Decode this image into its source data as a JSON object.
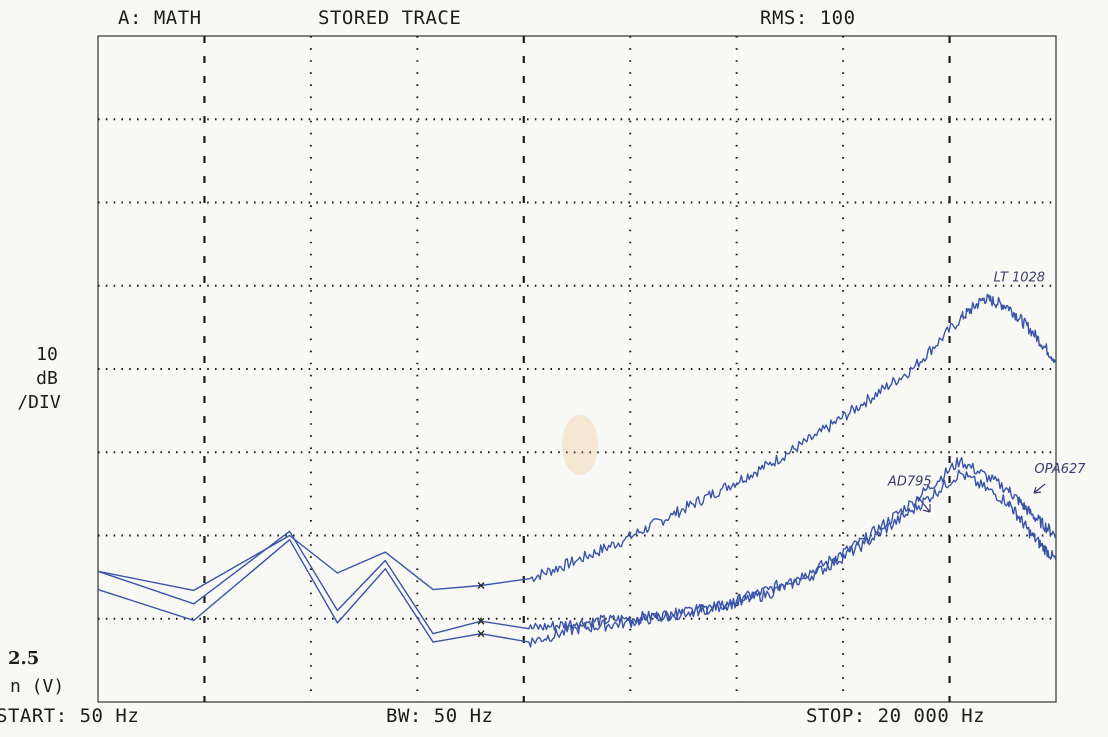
{
  "header": {
    "channel": "A: MATH",
    "trace": "STORED TRACE",
    "rms": "RMS: 100"
  },
  "scale": {
    "value": "10",
    "unit1": "dB",
    "unit2": "/DIV"
  },
  "reference": {
    "level": "2.5",
    "unit": "n (V)"
  },
  "footer": {
    "start": "START:  50 Hz",
    "bw": "BW:  50 Hz",
    "stop": "STOP:  20 000 Hz"
  },
  "colors": {
    "trace": "#3a55a8",
    "grid": "#1d1d1d",
    "frame": "#333333",
    "background": "#f8f8f5"
  },
  "chart_data": {
    "type": "line",
    "title": "",
    "xlabel": "",
    "ylabel": "",
    "x_scale": "linear",
    "xlim": [
      50,
      20000
    ],
    "ylim": [
      0,
      8
    ],
    "y_units": "divisions above reference (10 dB/DIV)",
    "grid": true,
    "series": [
      {
        "name": "LT 1028",
        "x": [
          50,
          2045,
          4040,
          5036,
          6032,
          7029,
          8026,
          9023,
          10020,
          11019,
          12017,
          13015,
          14013,
          15012,
          16010,
          17007,
          18004,
          18503,
          19002,
          19501,
          20000
        ],
        "y": [
          1.57,
          1.34,
          2.0,
          1.55,
          1.8,
          1.35,
          1.4,
          1.48,
          1.7,
          1.95,
          2.25,
          2.55,
          2.85,
          3.2,
          3.6,
          4.0,
          4.6,
          4.85,
          4.75,
          4.45,
          4.1
        ]
      },
      {
        "name": "AD795",
        "x": [
          50,
          2045,
          4040,
          5036,
          6032,
          7029,
          8026,
          9023,
          10020,
          11019,
          12017,
          13015,
          14013,
          15012,
          16010,
          17007,
          18004,
          19002,
          19501,
          20000
        ],
        "y": [
          1.57,
          1.18,
          2.05,
          1.1,
          1.7,
          0.82,
          0.97,
          0.88,
          0.95,
          1.0,
          1.05,
          1.15,
          1.35,
          1.6,
          1.95,
          2.4,
          2.9,
          2.55,
          2.25,
          2.0
        ]
      },
      {
        "name": "OPA627",
        "x": [
          50,
          2045,
          4040,
          5036,
          6032,
          7029,
          8026,
          9023,
          10020,
          11019,
          12017,
          13015,
          14013,
          15012,
          16010,
          17007,
          18004,
          19002,
          19501,
          20000
        ],
        "y": [
          1.35,
          0.98,
          1.95,
          0.95,
          1.6,
          0.72,
          0.82,
          0.72,
          0.88,
          0.95,
          1.05,
          1.15,
          1.3,
          1.55,
          1.9,
          2.3,
          2.75,
          2.4,
          2.0,
          1.7
        ]
      }
    ],
    "annotations": [
      {
        "text": "LT 1028",
        "x": 18700,
        "y": 5.05
      },
      {
        "text": "AD795",
        "x": 16500,
        "y": 2.6
      },
      {
        "text": "OPA627",
        "x": 19550,
        "y": 2.75
      }
    ],
    "markers": [
      {
        "x": 8026,
        "y": 1.4
      },
      {
        "x": 8026,
        "y": 0.97
      },
      {
        "x": 8026,
        "y": 0.82
      }
    ]
  }
}
